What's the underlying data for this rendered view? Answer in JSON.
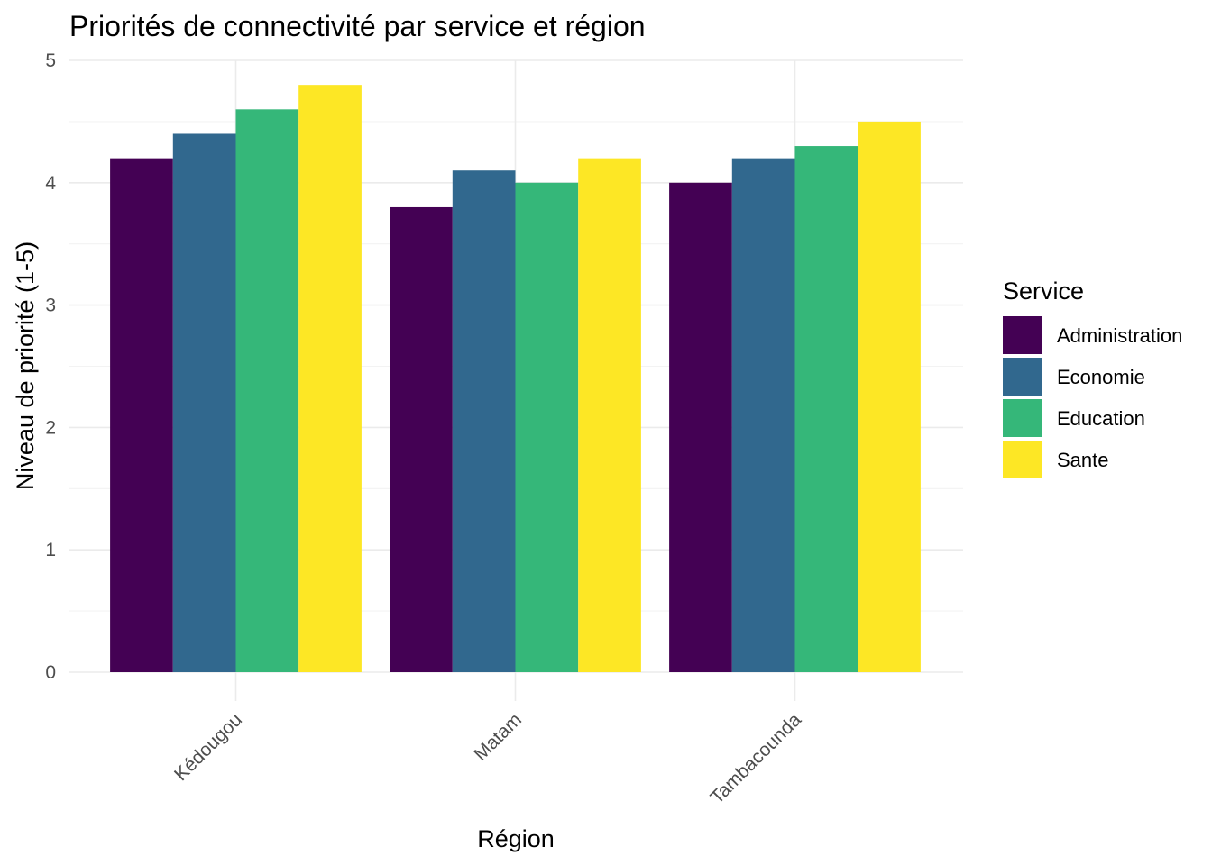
{
  "chart_data": {
    "type": "bar",
    "title": "Priorités de connectivité par service et région",
    "xlabel": "Région",
    "ylabel": "Niveau de priorité (1-5)",
    "categories": [
      "Kédougou",
      "Matam",
      "Tambacounda"
    ],
    "ylim": [
      0,
      5
    ],
    "yticks": [
      "0",
      "1",
      "2",
      "3",
      "4",
      "5"
    ],
    "grid": true,
    "legend": {
      "title": "Service",
      "position": "right"
    },
    "series": [
      {
        "name": "Administration",
        "color": "#440154",
        "values": [
          4.2,
          3.8,
          4.0
        ]
      },
      {
        "name": "Economie",
        "color": "#31688E",
        "values": [
          4.4,
          4.1,
          4.2
        ]
      },
      {
        "name": "Education",
        "color": "#35B779",
        "values": [
          4.6,
          4.0,
          4.3
        ]
      },
      {
        "name": "Sante",
        "color": "#FDE725",
        "values": [
          4.8,
          4.2,
          4.5
        ]
      }
    ]
  }
}
